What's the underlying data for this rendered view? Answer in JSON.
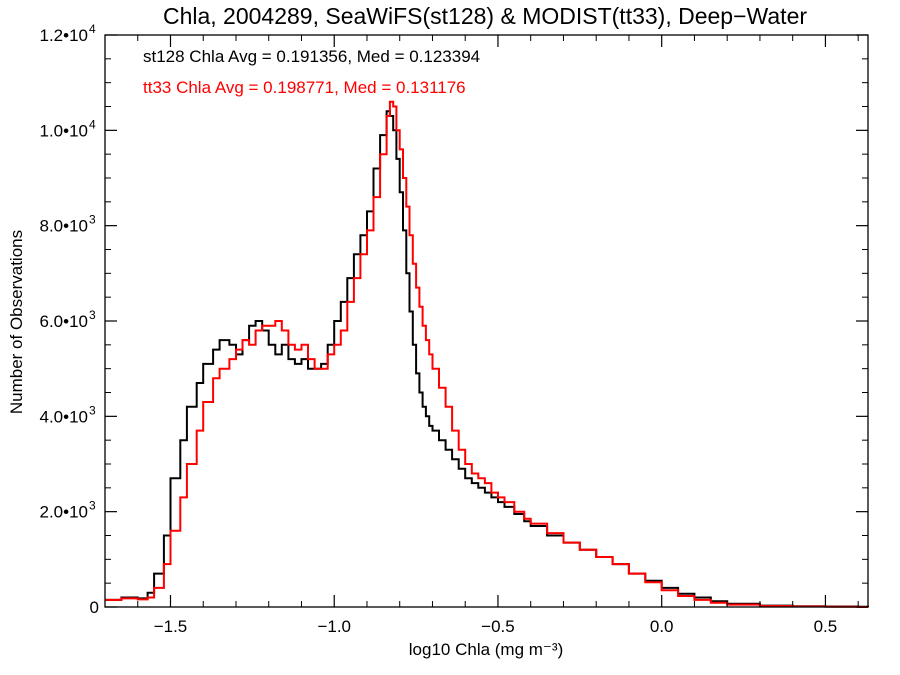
{
  "chart_data": {
    "type": "line",
    "title": "Chla, 2004289, SeaWiFS(st128) & MODIST(tt33), Deep−Water",
    "xlabel": "log10 Chla (mg m⁻³)",
    "ylabel": "Number of Observations",
    "xlim": [
      -1.7,
      0.63
    ],
    "ylim": [
      0,
      12000
    ],
    "x_ticks": [
      {
        "value": -1.5,
        "label": "−1.5"
      },
      {
        "value": -1.0,
        "label": "−1.0"
      },
      {
        "value": -0.5,
        "label": "−0.5"
      },
      {
        "value": 0.0,
        "label": "0.0"
      },
      {
        "value": 0.5,
        "label": "0.5"
      }
    ],
    "y_ticks": [
      {
        "value": 0,
        "label": "0"
      },
      {
        "value": 2000,
        "label": "2.0•10",
        "exp": "3"
      },
      {
        "value": 4000,
        "label": "4.0•10",
        "exp": "3"
      },
      {
        "value": 6000,
        "label": "6.0•10",
        "exp": "3"
      },
      {
        "value": 8000,
        "label": "8.0•10",
        "exp": "3"
      },
      {
        "value": 10000,
        "label": "1.0•10",
        "exp": "4"
      },
      {
        "value": 12000,
        "label": "1.2•10",
        "exp": "4"
      }
    ],
    "annotations": [
      {
        "text": "st128 Chla Avg = 0.191356, Med = 0.123394",
        "color": "#000000"
      },
      {
        "text": "tt33 Chla Avg = 0.198771, Med = 0.131176",
        "color": "#ff0000"
      }
    ],
    "series": [
      {
        "color": "#000000",
        "style": "step",
        "x": [
          -1.7,
          -1.65,
          -1.6,
          -1.57,
          -1.55,
          -1.52,
          -1.5,
          -1.47,
          -1.45,
          -1.42,
          -1.4,
          -1.37,
          -1.35,
          -1.32,
          -1.3,
          -1.28,
          -1.26,
          -1.24,
          -1.22,
          -1.2,
          -1.18,
          -1.16,
          -1.14,
          -1.12,
          -1.1,
          -1.08,
          -1.06,
          -1.04,
          -1.02,
          -1.0,
          -0.98,
          -0.96,
          -0.94,
          -0.92,
          -0.9,
          -0.88,
          -0.86,
          -0.84,
          -0.83,
          -0.82,
          -0.81,
          -0.8,
          -0.79,
          -0.78,
          -0.77,
          -0.76,
          -0.75,
          -0.74,
          -0.73,
          -0.72,
          -0.71,
          -0.7,
          -0.68,
          -0.66,
          -0.64,
          -0.62,
          -0.6,
          -0.58,
          -0.56,
          -0.54,
          -0.52,
          -0.5,
          -0.48,
          -0.45,
          -0.42,
          -0.4,
          -0.35,
          -0.3,
          -0.25,
          -0.2,
          -0.15,
          -0.1,
          -0.05,
          0.0,
          0.05,
          0.1,
          0.15,
          0.2,
          0.3,
          0.4,
          0.5,
          0.6,
          0.63
        ],
        "y": [
          150,
          200,
          180,
          300,
          700,
          1500,
          2700,
          3500,
          4200,
          4700,
          5100,
          5400,
          5600,
          5500,
          5300,
          5600,
          5900,
          6000,
          5800,
          5500,
          5300,
          5500,
          5200,
          5100,
          5200,
          5000,
          5000,
          5100,
          5500,
          6000,
          6400,
          6900,
          7400,
          7800,
          8300,
          9200,
          9900,
          10400,
          10300,
          10000,
          9400,
          8700,
          7900,
          7000,
          6200,
          5500,
          4900,
          4500,
          4200,
          4000,
          3800,
          3700,
          3500,
          3300,
          3100,
          2900,
          2700,
          2600,
          2500,
          2400,
          2300,
          2200,
          2100,
          1950,
          1800,
          1700,
          1500,
          1350,
          1200,
          1050,
          900,
          700,
          550,
          400,
          280,
          200,
          120,
          70,
          30,
          15,
          10,
          5,
          0
        ]
      },
      {
        "color": "#ff0000",
        "style": "step",
        "x": [
          -1.7,
          -1.65,
          -1.6,
          -1.57,
          -1.55,
          -1.52,
          -1.5,
          -1.47,
          -1.45,
          -1.42,
          -1.4,
          -1.37,
          -1.35,
          -1.32,
          -1.3,
          -1.28,
          -1.26,
          -1.24,
          -1.22,
          -1.2,
          -1.18,
          -1.16,
          -1.14,
          -1.12,
          -1.1,
          -1.08,
          -1.06,
          -1.04,
          -1.02,
          -1.0,
          -0.98,
          -0.96,
          -0.94,
          -0.92,
          -0.9,
          -0.88,
          -0.86,
          -0.84,
          -0.83,
          -0.82,
          -0.81,
          -0.8,
          -0.79,
          -0.78,
          -0.77,
          -0.76,
          -0.75,
          -0.74,
          -0.73,
          -0.72,
          -0.71,
          -0.7,
          -0.68,
          -0.66,
          -0.64,
          -0.62,
          -0.6,
          -0.58,
          -0.56,
          -0.54,
          -0.52,
          -0.5,
          -0.48,
          -0.45,
          -0.42,
          -0.4,
          -0.35,
          -0.3,
          -0.25,
          -0.2,
          -0.15,
          -0.1,
          -0.05,
          0.0,
          0.05,
          0.1,
          0.15,
          0.2,
          0.3,
          0.4,
          0.5,
          0.6,
          0.63
        ],
        "y": [
          150,
          180,
          160,
          200,
          400,
          900,
          1600,
          2300,
          3000,
          3700,
          4300,
          4800,
          5000,
          5200,
          5400,
          5600,
          5500,
          5800,
          5900,
          5900,
          6000,
          5800,
          5500,
          5400,
          5500,
          5200,
          5000,
          5000,
          5300,
          5500,
          5800,
          6400,
          6900,
          7400,
          7900,
          8600,
          9500,
          10300,
          10600,
          10500,
          10000,
          9600,
          9000,
          8400,
          7800,
          7200,
          6700,
          6300,
          5900,
          5600,
          5300,
          5000,
          4600,
          4200,
          3700,
          3300,
          3000,
          2800,
          2700,
          2600,
          2400,
          2300,
          2200,
          2000,
          1850,
          1750,
          1550,
          1350,
          1200,
          1050,
          900,
          700,
          520,
          350,
          230,
          150,
          90,
          50,
          20,
          10,
          5,
          0,
          0
        ]
      }
    ]
  }
}
